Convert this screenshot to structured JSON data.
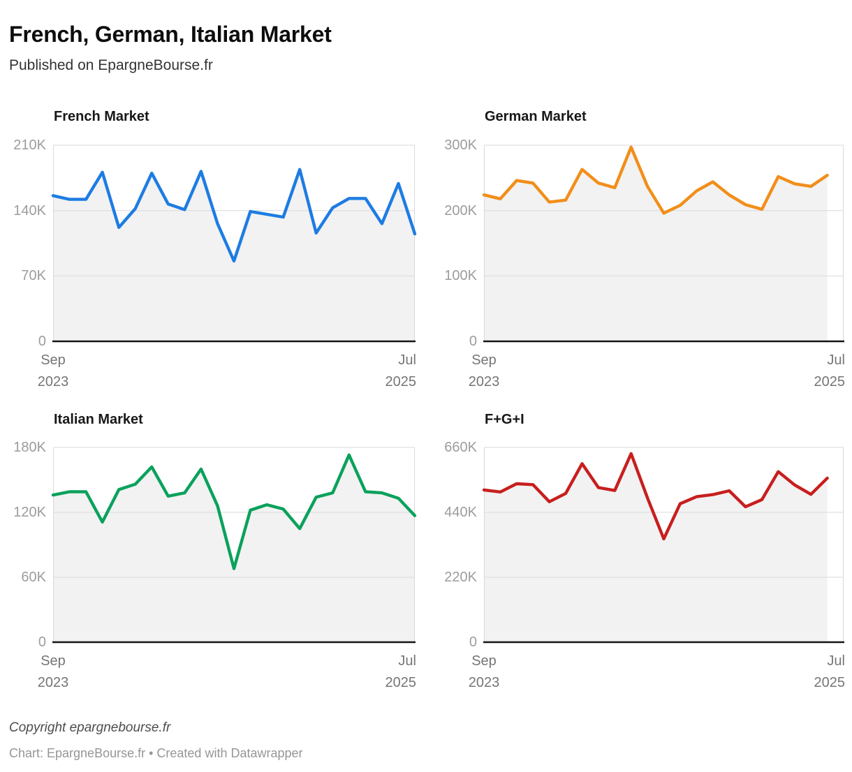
{
  "header": {
    "title": "French, German, Italian Market",
    "subtitle": "Published on EpargneBourse.fr"
  },
  "footer": {
    "copyright": "Copyright epargnebourse.fr",
    "byline": "Chart: EpargneBourse.fr • Created with Datawrapper"
  },
  "axis": {
    "start": [
      "Sep",
      "2023"
    ],
    "end": [
      "Jul",
      "2025"
    ]
  },
  "chart_data": [
    {
      "type": "line",
      "title": "French Market",
      "series_color": "#1d7ce3",
      "x_slots": 23,
      "x_range": [
        "Sep 2023",
        "Jul 2025"
      ],
      "y_max": 210000,
      "ylim": [
        0,
        210000
      ],
      "grid": true,
      "y_ticks": [
        {
          "label": "210K",
          "value": 210000
        },
        {
          "label": "140K",
          "value": 140000
        },
        {
          "label": "70K",
          "value": 70000
        },
        {
          "label": "0",
          "value": 0
        }
      ],
      "values": [
        156000,
        152000,
        152000,
        181000,
        122000,
        142000,
        180000,
        147000,
        141000,
        182000,
        126000,
        86000,
        139000,
        136000,
        133000,
        184000,
        116000,
        143000,
        153000,
        153000,
        126000,
        169000,
        115000
      ]
    },
    {
      "type": "line",
      "title": "German Market",
      "series_color": "#f28e1a",
      "x_slots": 23,
      "x_range": [
        "Sep 2023",
        "Jul 2025"
      ],
      "y_max": 300000,
      "ylim": [
        0,
        300000
      ],
      "grid": true,
      "y_ticks": [
        {
          "label": "300K",
          "value": 300000
        },
        {
          "label": "200K",
          "value": 200000
        },
        {
          "label": "100K",
          "value": 100000
        },
        {
          "label": "0",
          "value": 0
        }
      ],
      "values": [
        224000,
        218000,
        246000,
        242000,
        213000,
        216000,
        263000,
        242000,
        235000,
        297000,
        237000,
        196000,
        208000,
        230000,
        244000,
        224000,
        209000,
        202000,
        252000,
        241000,
        237000,
        254000
      ]
    },
    {
      "type": "line",
      "title": "Italian Market",
      "series_color": "#0ba15c",
      "x_slots": 23,
      "x_range": [
        "Sep 2023",
        "Jul 2025"
      ],
      "y_max": 180000,
      "ylim": [
        0,
        180000
      ],
      "grid": true,
      "y_ticks": [
        {
          "label": "180K",
          "value": 180000
        },
        {
          "label": "120K",
          "value": 120000
        },
        {
          "label": "60K",
          "value": 60000
        },
        {
          "label": "0",
          "value": 0
        }
      ],
      "values": [
        136000,
        139000,
        139000,
        111000,
        141000,
        146000,
        162000,
        135000,
        138000,
        160000,
        126000,
        68000,
        122000,
        127000,
        123000,
        105000,
        134000,
        138000,
        173000,
        139000,
        138000,
        133000,
        117000
      ]
    },
    {
      "type": "line",
      "title": "F+G+I",
      "series_color": "#c71f1e",
      "x_slots": 23,
      "x_range": [
        "Sep 2023",
        "Jul 2025"
      ],
      "y_max": 660000,
      "ylim": [
        0,
        660000
      ],
      "grid": true,
      "y_ticks": [
        {
          "label": "660K",
          "value": 660000
        },
        {
          "label": "440K",
          "value": 440000
        },
        {
          "label": "220K",
          "value": 220000
        },
        {
          "label": "0",
          "value": 0
        }
      ],
      "values": [
        516000,
        509000,
        537000,
        534000,
        476000,
        504000,
        605000,
        524000,
        514000,
        639000,
        489000,
        350000,
        469000,
        493000,
        500000,
        513000,
        459000,
        483000,
        578000,
        533000,
        501000,
        556000
      ]
    }
  ]
}
